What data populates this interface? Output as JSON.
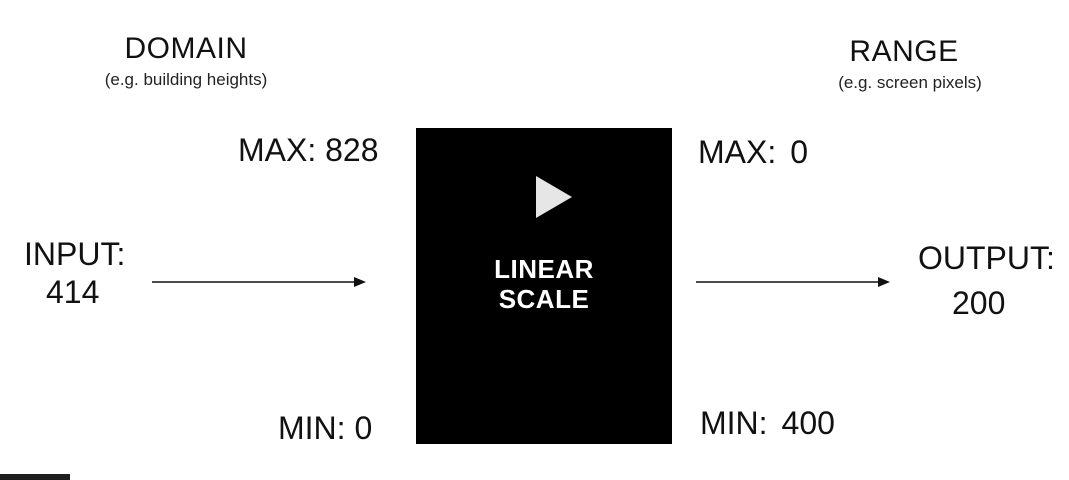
{
  "domain": {
    "title": "DOMAIN",
    "subtitle": "(e.g. building heights)",
    "max_label": "MAX:",
    "max_value": "828",
    "min_label": "MIN:",
    "min_value": "0"
  },
  "range": {
    "title": "RANGE",
    "subtitle": "(e.g. screen pixels)",
    "max_label": "MAX:",
    "max_value": "0",
    "min_label": "MIN:",
    "min_value": "400"
  },
  "input": {
    "label": "INPUT:",
    "value": "414"
  },
  "output": {
    "label": "OUTPUT:",
    "value": "200"
  },
  "scale_box": {
    "line1": "LINEAR",
    "line2": "SCALE",
    "play_icon": "play-icon"
  },
  "colors": {
    "box": "#000000",
    "play": "#e6e6e6",
    "text": "#111111"
  }
}
